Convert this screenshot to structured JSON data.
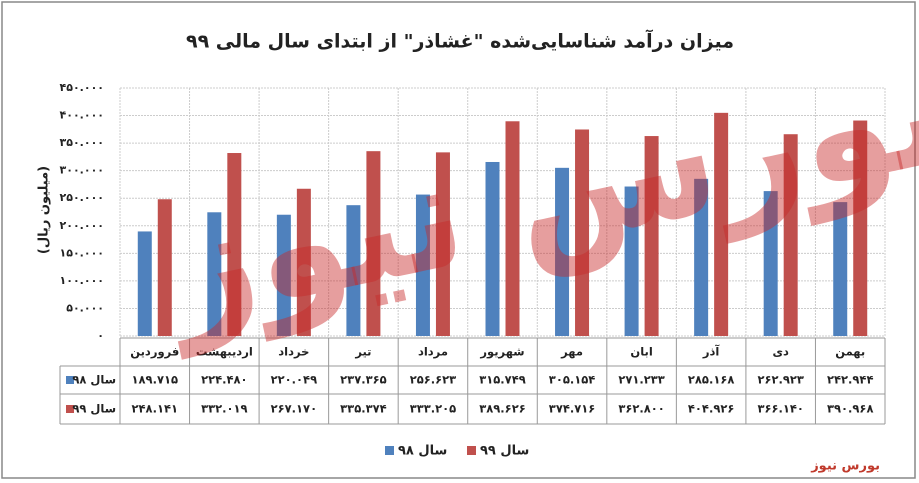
{
  "chart_data": {
    "type": "bar",
    "title": "میزان درآمد شناسایی‌شده \"غشاذر\" از ابتدای سال مالی ۹۹",
    "y_label": "(میلیون ریال)",
    "watermark": "بورس نیوز",
    "source": "بورس نیوز",
    "categories": [
      "فروردین",
      "اردیبهشت",
      "خرداد",
      "تیر",
      "مرداد",
      "شهریور",
      "مهر",
      "ابان",
      "آذر",
      "دی",
      "بهمن"
    ],
    "series": [
      {
        "name": "سال ۹۸",
        "color": "#4f81bd",
        "values": [
          189715,
          224480,
          220049,
          237365,
          256623,
          315749,
          305154,
          271233,
          285168,
          262923,
          242944
        ],
        "value_labels": [
          "۱۸۹.۷۱۵",
          "۲۲۴.۴۸۰",
          "۲۲۰.۰۴۹",
          "۲۳۷.۳۶۵",
          "۲۵۶.۶۲۳",
          "۳۱۵.۷۴۹",
          "۳۰۵.۱۵۴",
          "۲۷۱.۲۳۳",
          "۲۸۵.۱۶۸",
          "۲۶۲.۹۲۳",
          "۲۴۲.۹۴۴"
        ]
      },
      {
        "name": "سال ۹۹",
        "color": "#c0504d",
        "values": [
          248141,
          332019,
          267170,
          335374,
          333205,
          389626,
          374716,
          362800,
          404926,
          366140,
          390968
        ],
        "value_labels": [
          "۲۴۸.۱۴۱",
          "۳۳۲.۰۱۹",
          "۲۶۷.۱۷۰",
          "۳۳۵.۳۷۴",
          "۳۳۳.۲۰۵",
          "۳۸۹.۶۲۶",
          "۳۷۴.۷۱۶",
          "۳۶۲.۸۰۰",
          "۴۰۴.۹۲۶",
          "۳۶۶.۱۴۰",
          "۳۹۰.۹۶۸"
        ]
      }
    ],
    "ylim": [
      0,
      450000
    ],
    "yticks": [
      {
        "value": 0,
        "label": "۰"
      },
      {
        "value": 50000,
        "label": "۵۰.۰۰۰"
      },
      {
        "value": 100000,
        "label": "۱۰۰.۰۰۰"
      },
      {
        "value": 150000,
        "label": "۱۵۰.۰۰۰"
      },
      {
        "value": 200000,
        "label": "۲۰۰.۰۰۰"
      },
      {
        "value": 250000,
        "label": "۲۵۰.۰۰۰"
      },
      {
        "value": 300000,
        "label": "۳۰۰.۰۰۰"
      },
      {
        "value": 350000,
        "label": "۳۵۰.۰۰۰"
      },
      {
        "value": 400000,
        "label": "۴۰۰.۰۰۰"
      },
      {
        "value": 450000,
        "label": "۴۵۰.۰۰۰"
      }
    ],
    "grid": true
  }
}
